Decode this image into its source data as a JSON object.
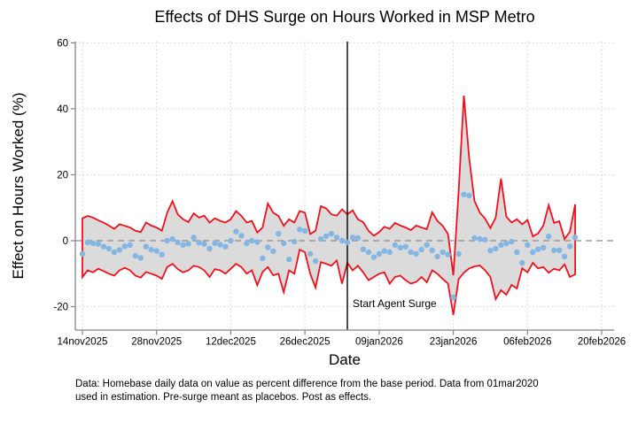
{
  "window": {
    "background": "#ffffff"
  },
  "chart_data": {
    "type": "line",
    "subtype": "event-study with confidence band and scatter point estimates",
    "title": "Effects of DHS Surge on Hours Worked in MSP Metro",
    "xlabel": "Date",
    "ylabel": "Effect on Hours Worked (%)",
    "x_tick_labels": [
      "14nov2025",
      "28nov2025",
      "12dec2025",
      "26dec2025",
      "09jan2026",
      "23jan2026",
      "06feb2026",
      "20feb2026"
    ],
    "x_tick_days": [
      0,
      14,
      28,
      42,
      56,
      70,
      84,
      98
    ],
    "y_ticks": [
      -20,
      0,
      20,
      40,
      60
    ],
    "ylim": [
      -27,
      60.5
    ],
    "x_start_date": "14nov2025",
    "x_end_date_of_data": "15feb2026",
    "frequency": "daily",
    "grid": "dotted horizontal and vertical at major ticks",
    "legend": "none",
    "reference_lines": {
      "zero_line": {
        "y": 0,
        "style": "dashed",
        "color": "#8c8c8c"
      },
      "event_line": {
        "day": 50,
        "date": "03jan2026",
        "label": "Start Agent Surge",
        "style": "solid",
        "color": "#000000"
      }
    },
    "colors": {
      "band_fill": "#dbdbdb",
      "ci_line": "#f1101b",
      "point": "#84b6e4",
      "grid": "#d2d2d2",
      "axis": "#848484",
      "text": "#000000"
    },
    "series": [
      {
        "name": "Point estimate",
        "style": "scatter",
        "values": [
          -4,
          -0.5,
          -0.8,
          -1,
          -1.8,
          -2.4,
          -3.5,
          -2.8,
          -1.7,
          -1.3,
          -4.6,
          -5.2,
          -1.8,
          -2.7,
          -3.1,
          -4.2,
          0,
          0.5,
          -0.5,
          -1.3,
          -0.9,
          1,
          -0.6,
          -1,
          -2.4,
          -0.8,
          -1.2,
          -1.8,
          0,
          2.8,
          1.5,
          -0.8,
          0,
          -0.4,
          -5.3,
          -2,
          -3.2,
          2.1,
          -0.8,
          -5.7,
          -0.3,
          3.4,
          3,
          -4,
          -6.2,
          0.5,
          1.4,
          2.1,
          1,
          0,
          -0.5,
          1,
          0.8,
          -2.6,
          -3.5,
          -5,
          -4,
          -3.1,
          -3.5,
          -1.3,
          -2.1,
          -1.8,
          -3.5,
          -4,
          -2.7,
          -1.3,
          -2.9,
          -4.8,
          -3.5,
          -4.2,
          -17.2,
          -4,
          14,
          13.7,
          0.8,
          0.5,
          0.3,
          -3,
          -2.4,
          -1.3,
          -0.8,
          -0.3,
          -3.5,
          -6.7,
          -1.3,
          -3.5,
          -2.6,
          -2.1,
          1.3,
          -2.9,
          -2.9,
          -4.8,
          -1.7,
          1
        ]
      },
      {
        "name": "CI upper",
        "style": "line",
        "values": [
          6.8,
          7.5,
          7,
          6.2,
          5.5,
          4.6,
          3.6,
          5,
          4.5,
          4,
          3,
          2.6,
          5.5,
          4.6,
          4,
          3,
          8.5,
          12,
          8,
          6.5,
          5.6,
          8.3,
          7,
          7.6,
          5.5,
          6.8,
          6,
          5.5,
          6.5,
          9,
          7.5,
          5.5,
          6,
          2.5,
          4,
          11.3,
          8.5,
          7.5,
          4.5,
          6.5,
          5.5,
          9,
          8.5,
          2,
          3,
          10.5,
          9.8,
          8,
          7.6,
          9.5,
          8,
          9.2,
          6.5,
          5.6,
          3,
          1.5,
          2.6,
          4.2,
          3.6,
          5.4,
          4.6,
          4,
          3.2,
          4.6,
          4,
          3.5,
          8.6,
          6,
          4.5,
          2,
          -10.5,
          15,
          44,
          25,
          12,
          8.5,
          6.7,
          3.8,
          7,
          18.8,
          7.3,
          5.5,
          6.5,
          5,
          6.3,
          1.3,
          2.2,
          4.6,
          10.8,
          5.4,
          5.9,
          0.5,
          2.7,
          11
        ]
      },
      {
        "name": "CI lower",
        "style": "line",
        "values": [
          -11,
          -9,
          -9.6,
          -8.5,
          -9.2,
          -10,
          -10.6,
          -9,
          -8.2,
          -9,
          -10.6,
          -11.2,
          -9.5,
          -10,
          -10.6,
          -11.6,
          -8,
          -7,
          -8.6,
          -9.6,
          -9,
          -7.6,
          -8,
          -9,
          -11,
          -8.6,
          -9,
          -10,
          -8.5,
          -7,
          -8,
          -10,
          -9,
          -13.5,
          -9.5,
          -8,
          -10.5,
          -10,
          -15.6,
          -9,
          -10,
          -2.7,
          -3.5,
          -10,
          -14.2,
          -6.5,
          -7,
          -7.6,
          -6,
          -13,
          -6.7,
          -9,
          -7.6,
          -9.6,
          -12,
          -11,
          -10,
          -9.6,
          -13,
          -11,
          -10.6,
          -12,
          -13,
          -12.5,
          -11,
          -12.6,
          -9,
          -10,
          -11.6,
          -13,
          -22.5,
          -11.6,
          -9.7,
          -8.4,
          -7.8,
          -7.5,
          -9,
          -11,
          -17.7,
          -15,
          -16.4,
          -13.4,
          -14.5,
          -8.4,
          -9.6,
          -6.7,
          -8.4,
          -8,
          -9.7,
          -8.5,
          -9,
          -7.2,
          -11,
          -10.2
        ]
      }
    ]
  },
  "footnote": {
    "line1": "Data: Homebase daily data on value as percent difference from the base period. Data from 01mar2020",
    "line2": "used in estimation. Pre-surge meant as placebos. Post as effects."
  }
}
